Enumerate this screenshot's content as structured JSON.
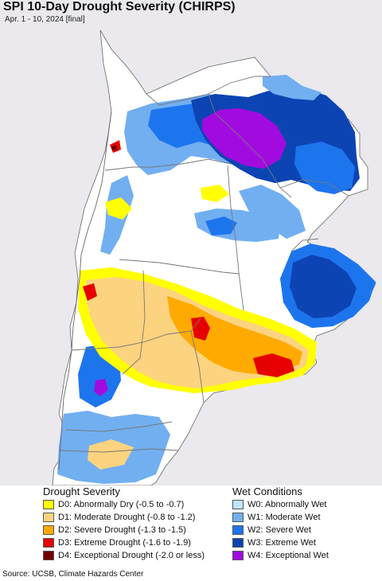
{
  "header": {
    "title": "SPI 10-Day Drought Severity (CHIRPS)",
    "subtitle": "Apr. 1 - 10, 2024 [final]"
  },
  "legend": {
    "drought": {
      "heading": "Drought Severity",
      "items": [
        {
          "label": "D0: Abnormally Dry (-0.5 to -0.7)",
          "color": "#ffff00"
        },
        {
          "label": "D1: Moderate Drought (-0.8 to -1.2)",
          "color": "#fcd37f"
        },
        {
          "label": "D2: Severe Drought (-1.3 to -1.5)",
          "color": "#ffaa00"
        },
        {
          "label": "D3: Extreme Drought (-1.6 to -1.9)",
          "color": "#e60000"
        },
        {
          "label": "D4: Exceptional Drought (-2.0 or less)",
          "color": "#730000"
        }
      ]
    },
    "wet": {
      "heading": "Wet Conditions",
      "items": [
        {
          "label": "W0: Abnormally Wet",
          "color": "#bde6fa"
        },
        {
          "label": "W1: Moderate Wet",
          "color": "#72aff1"
        },
        {
          "label": "W2: Severe Wet",
          "color": "#1d75ee"
        },
        {
          "label": "W3: Extreme Wet",
          "color": "#0d44b3"
        },
        {
          "label": "W4: Exceptional Wet",
          "color": "#a20bdf"
        }
      ]
    }
  },
  "footer": {
    "source": "Source: UCSB, Climate Hazards Center"
  },
  "map": {
    "ocean_color": "#ebe9ed",
    "land_color": "#ffffff",
    "border_color": "#777777"
  }
}
